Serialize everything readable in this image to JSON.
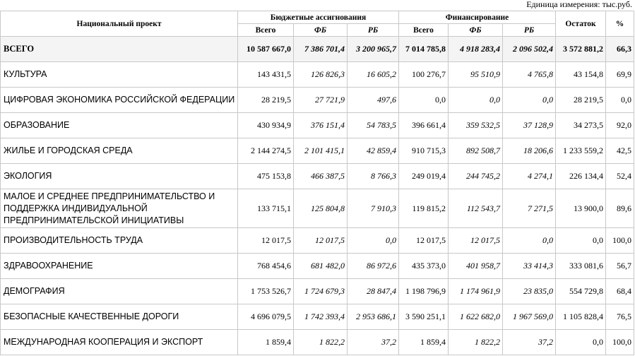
{
  "unit_label": "Единица измерения: тыс.руб.",
  "headers": {
    "project": "Национальный проект",
    "budget": "Бюджетные ассигнования",
    "financing": "Финансирование",
    "remainder": "Остаток",
    "percent": "%",
    "total": "Всего",
    "fb": "ФБ",
    "rb": "РБ"
  },
  "rows": [
    {
      "name": "ВСЕГО",
      "b_total": "10 587 667,0",
      "b_fb": "7 386 701,4",
      "b_rb": "3 200 965,7",
      "f_total": "7 014 785,8",
      "f_fb": "4 918 283,4",
      "f_rb": "2 096 502,4",
      "rest": "3 572 881,2",
      "pct": "66,3"
    },
    {
      "name": "КУЛЬТУРА",
      "b_total": "143 431,5",
      "b_fb": "126 826,3",
      "b_rb": "16 605,2",
      "f_total": "100 276,7",
      "f_fb": "95 510,9",
      "f_rb": "4 765,8",
      "rest": "43 154,8",
      "pct": "69,9"
    },
    {
      "name": "ЦИФРОВАЯ ЭКОНОМИКА РОССИЙСКОЙ ФЕДЕРАЦИИ",
      "b_total": "28 219,5",
      "b_fb": "27 721,9",
      "b_rb": "497,6",
      "f_total": "0,0",
      "f_fb": "0,0",
      "f_rb": "0,0",
      "rest": "28 219,5",
      "pct": "0,0"
    },
    {
      "name": "ОБРАЗОВАНИЕ",
      "b_total": "430 934,9",
      "b_fb": "376 151,4",
      "b_rb": "54 783,5",
      "f_total": "396 661,4",
      "f_fb": "359 532,5",
      "f_rb": "37 128,9",
      "rest": "34 273,5",
      "pct": "92,0"
    },
    {
      "name": "ЖИЛЬЕ И ГОРОДСКАЯ СРЕДА",
      "b_total": "2 144 274,5",
      "b_fb": "2 101 415,1",
      "b_rb": "42 859,4",
      "f_total": "910 715,3",
      "f_fb": "892 508,7",
      "f_rb": "18 206,6",
      "rest": "1 233 559,2",
      "pct": "42,5"
    },
    {
      "name": "ЭКОЛОГИЯ",
      "b_total": "475 153,8",
      "b_fb": "466 387,5",
      "b_rb": "8 766,3",
      "f_total": "249 019,4",
      "f_fb": "244 745,2",
      "f_rb": "4 274,1",
      "rest": "226 134,4",
      "pct": "52,4"
    },
    {
      "name": "МАЛОЕ И СРЕДНЕЕ ПРЕДПРИНИМАТЕЛЬСТВО И ПОДДЕРЖКА ИНДИВИДУАЛЬНОЙ ПРЕДПРИНИМАТЕЛЬСКОЙ ИНИЦИАТИВЫ",
      "b_total": "133 715,1",
      "b_fb": "125 804,8",
      "b_rb": "7 910,3",
      "f_total": "119 815,2",
      "f_fb": "112 543,7",
      "f_rb": "7 271,5",
      "rest": "13 900,0",
      "pct": "89,6"
    },
    {
      "name": "ПРОИЗВОДИТЕЛЬНОСТЬ ТРУДА",
      "b_total": "12 017,5",
      "b_fb": "12 017,5",
      "b_rb": "0,0",
      "f_total": "12 017,5",
      "f_fb": "12 017,5",
      "f_rb": "0,0",
      "rest": "0,0",
      "pct": "100,0"
    },
    {
      "name": "ЗДРАВООХРАНЕНИЕ",
      "b_total": "768 454,6",
      "b_fb": "681 482,0",
      "b_rb": "86 972,6",
      "f_total": "435 373,0",
      "f_fb": "401 958,7",
      "f_rb": "33 414,3",
      "rest": "333 081,6",
      "pct": "56,7"
    },
    {
      "name": "ДЕМОГРАФИЯ",
      "b_total": "1 753 526,7",
      "b_fb": "1 724 679,3",
      "b_rb": "28 847,4",
      "f_total": "1 198 796,9",
      "f_fb": "1 174 961,9",
      "f_rb": "23 835,0",
      "rest": "554 729,8",
      "pct": "68,4"
    },
    {
      "name": "БЕЗОПАСНЫЕ КАЧЕСТВЕННЫЕ ДОРОГИ",
      "b_total": "4 696 079,5",
      "b_fb": "1 742 393,4",
      "b_rb": "2 953 686,1",
      "f_total": "3 590 251,1",
      "f_fb": "1 622 682,0",
      "f_rb": "1 967 569,0",
      "rest": "1 105 828,4",
      "pct": "76,5"
    },
    {
      "name": "МЕЖДУНАРОДНАЯ КООПЕРАЦИЯ И ЭКСПОРТ",
      "b_total": "1 859,4",
      "b_fb": "1 822,2",
      "b_rb": "37,2",
      "f_total": "1 859,4",
      "f_fb": "1 822,2",
      "f_rb": "37,2",
      "rest": "0,0",
      "pct": "100,0"
    }
  ]
}
